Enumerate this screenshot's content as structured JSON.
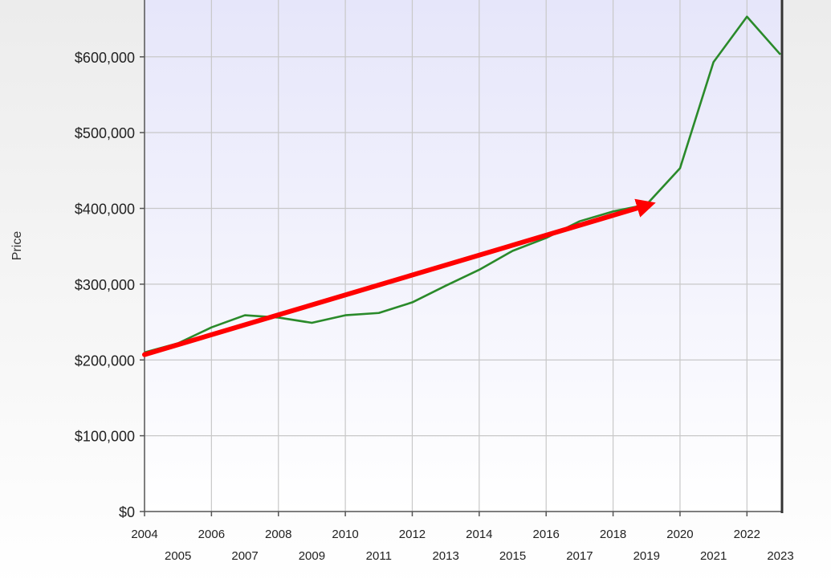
{
  "chart_data": {
    "type": "line",
    "title": "",
    "xlabel": "",
    "ylabel": "Price",
    "x": [
      2004,
      2005,
      2006,
      2007,
      2008,
      2009,
      2010,
      2011,
      2012,
      2013,
      2014,
      2015,
      2016,
      2017,
      2018,
      2019,
      2020,
      2021,
      2022,
      2023
    ],
    "series": [
      {
        "values": [
          210000,
          222000,
          243000,
          259000,
          256000,
          249000,
          259000,
          262000,
          276000,
          298000,
          319000,
          344000,
          361000,
          383000,
          396000,
          405000,
          453000,
          593000,
          653000,
          603000
        ],
        "color": "#2a8a2a"
      }
    ],
    "annotation": {
      "type": "trend-arrow",
      "color": "#ff0000",
      "from": [
        2004,
        207000
      ],
      "to": [
        2019,
        404000
      ]
    },
    "y_tick_labels": [
      "$0",
      "$100,000",
      "$200,000",
      "$300,000",
      "$400,000",
      "$500,000",
      "$600,000"
    ],
    "y_ticks": [
      0,
      100000,
      200000,
      300000,
      400000,
      500000,
      600000
    ],
    "x_tick_labels": [
      "2004",
      "2005",
      "2006",
      "2007",
      "2008",
      "2009",
      "2010",
      "2011",
      "2012",
      "2013",
      "2014",
      "2015",
      "2016",
      "2017",
      "2018",
      "2019",
      "2020",
      "2021",
      "2022",
      "2023"
    ],
    "xlim": [
      2004,
      2023
    ],
    "ylim": [
      0,
      675000
    ],
    "grid": true,
    "plot_background": [
      "#e6e6fa",
      "#ffffff"
    ],
    "legend": "none"
  }
}
